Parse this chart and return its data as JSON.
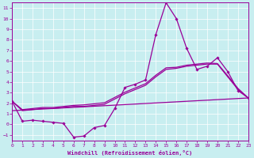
{
  "xlabel": "Windchill (Refroidissement éolien,°C)",
  "background_color": "#c8eef0",
  "line_color": "#990099",
  "xlim": [
    0,
    23
  ],
  "ylim": [
    -1.5,
    11.5
  ],
  "xticks": [
    0,
    1,
    2,
    3,
    4,
    5,
    6,
    7,
    8,
    9,
    10,
    11,
    12,
    13,
    14,
    15,
    16,
    17,
    18,
    19,
    20,
    21,
    22,
    23
  ],
  "yticks": [
    -1,
    0,
    1,
    2,
    3,
    4,
    5,
    6,
    7,
    8,
    9,
    10,
    11
  ],
  "series": {
    "line_main": {
      "x": [
        0,
        1,
        2,
        3,
        4,
        5,
        6,
        7,
        8,
        9,
        10,
        11,
        12,
        13,
        14,
        15,
        16,
        17,
        18,
        19,
        20,
        21,
        22,
        23
      ],
      "y": [
        2.2,
        0.3,
        0.4,
        0.3,
        0.2,
        0.1,
        -1.2,
        -1.1,
        -0.3,
        -0.1,
        1.5,
        3.5,
        3.8,
        4.2,
        8.5,
        11.5,
        10.0,
        7.2,
        5.2,
        5.5,
        6.3,
        5.0,
        3.2,
        2.5
      ]
    },
    "line_trend1": {
      "x": [
        0,
        1,
        2,
        3,
        4,
        5,
        6,
        7,
        8,
        9,
        10,
        11,
        12,
        13,
        14,
        15,
        16,
        17,
        18,
        19,
        20,
        21,
        22,
        23
      ],
      "y": [
        2.2,
        1.3,
        1.4,
        1.5,
        1.5,
        1.6,
        1.7,
        1.7,
        1.8,
        1.9,
        2.4,
        2.9,
        3.3,
        3.7,
        4.5,
        5.2,
        5.3,
        5.5,
        5.6,
        5.7,
        5.7,
        4.5,
        3.3,
        2.5
      ]
    },
    "line_trend2": {
      "x": [
        0,
        1,
        2,
        3,
        4,
        5,
        6,
        7,
        8,
        9,
        10,
        11,
        12,
        13,
        14,
        15,
        16,
        17,
        18,
        19,
        20,
        21,
        22,
        23
      ],
      "y": [
        2.2,
        1.4,
        1.5,
        1.6,
        1.6,
        1.7,
        1.8,
        1.85,
        1.95,
        2.05,
        2.55,
        3.05,
        3.45,
        3.85,
        4.65,
        5.35,
        5.4,
        5.6,
        5.7,
        5.8,
        5.75,
        4.6,
        3.4,
        2.5
      ]
    },
    "line_flat": {
      "x": [
        0,
        23
      ],
      "y": [
        1.3,
        2.5
      ]
    }
  }
}
